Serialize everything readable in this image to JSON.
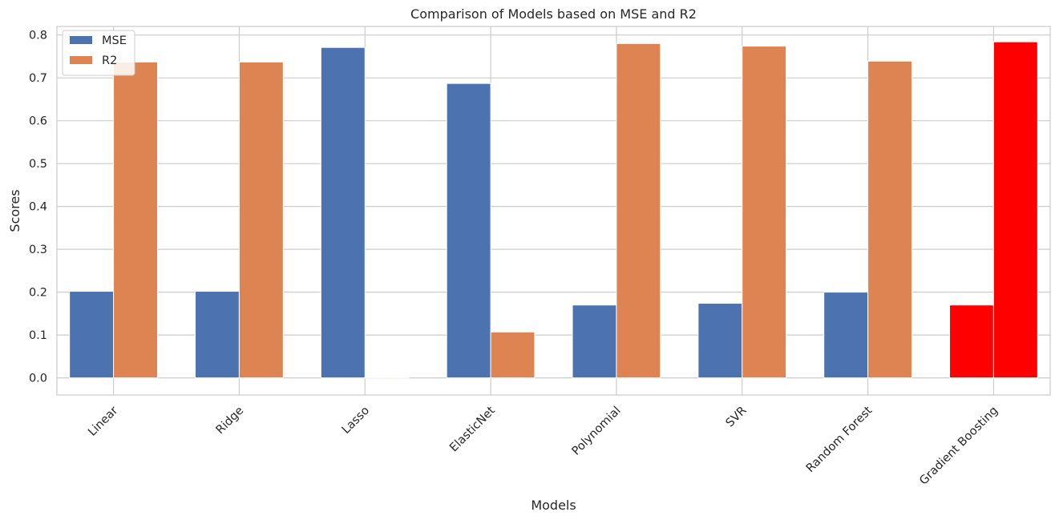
{
  "chart_data": {
    "type": "bar",
    "title": "Comparison of Models based on MSE and R2",
    "xlabel": "Models",
    "ylabel": "Scores",
    "categories": [
      "Linear",
      "Ridge",
      "Lasso",
      "ElasticNet",
      "Polynomial",
      "SVR",
      "Random Forest",
      "Gradient Boosting"
    ],
    "series": [
      {
        "name": "MSE",
        "color": "#4c72b0",
        "values": [
          0.202,
          0.202,
          0.771,
          0.687,
          0.17,
          0.174,
          0.2,
          0.17
        ]
      },
      {
        "name": "R2",
        "color": "#dd8452",
        "values": [
          0.737,
          0.737,
          0.002,
          0.107,
          0.78,
          0.774,
          0.739,
          0.784
        ]
      }
    ],
    "highlight": {
      "category": "Gradient Boosting",
      "color": "#ff0000"
    },
    "ylim": [
      -0.04,
      0.82
    ],
    "yticks": [
      "0.0",
      "0.1",
      "0.2",
      "0.3",
      "0.4",
      "0.5",
      "0.6",
      "0.7",
      "0.8"
    ],
    "grid": true,
    "legend_position": "top-left",
    "colors": {
      "grid": "#cccccc",
      "frame": "#cccccc",
      "text": "#262626"
    }
  }
}
